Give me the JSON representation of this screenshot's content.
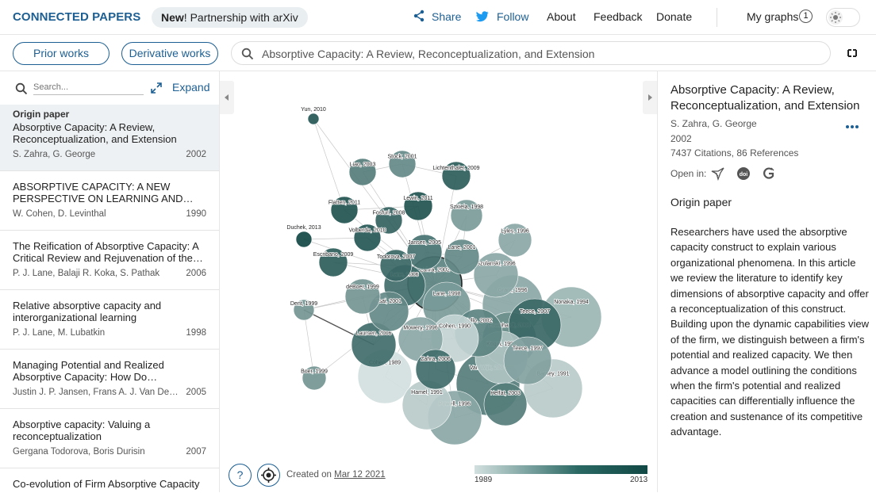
{
  "header": {
    "brand": "CONNECTED PAPERS",
    "announce_bold": "New",
    "announce_rest": "! Partnership with arXiv",
    "share": "Share",
    "follow": "Follow",
    "about": "About",
    "feedback": "Feedback",
    "donate": "Donate",
    "my_graphs": "My graphs",
    "graph_count": "1"
  },
  "toolbar": {
    "prior_works": "Prior works",
    "derivative_works": "Derivative works",
    "search_value": "Absorptive Capacity: A Review, Reconceptualization, and Extension"
  },
  "list": {
    "search_placeholder": "Search...",
    "expand": "Expand",
    "origin_tag": "Origin paper",
    "papers": [
      {
        "title": "Absorptive Capacity: A Review, Reconceptualization, and Extension",
        "authors": "S. Zahra, G. George",
        "year": "2002"
      },
      {
        "title": "ABSORPTIVE CAPACITY: A NEW PERSPECTIVE ON LEARNING AND…",
        "authors": "W. Cohen, D. Levinthal",
        "year": "1990"
      },
      {
        "title": "The Reification of Absorptive Capacity: A Critical Review and Rejuvenation of the…",
        "authors": "P. J. Lane, Balaji R. Koka, S. Pathak",
        "year": "2006"
      },
      {
        "title": "Relative absorptive capacity and interorganizational learning",
        "authors": "P. J. Lane, M. Lubatkin",
        "year": "1998"
      },
      {
        "title": "Managing Potential and Realized Absorptive Capacity: How Do…",
        "authors": "Justin J. P. Jansen, Frans A. J. Van Den…",
        "year": "2005"
      },
      {
        "title": "Absorptive capacity: Valuing a reconceptualization",
        "authors": "Gergana Todorova, Boris Durisin",
        "year": "2007"
      },
      {
        "title": "Co-evolution of Firm Absorptive Capacity",
        "authors": "",
        "year": ""
      }
    ]
  },
  "graph": {
    "created_prefix": "Created on",
    "created_date": "Mar 12 2021",
    "legend_min": "1989",
    "legend_max": "2013",
    "help": "?",
    "nodes": [
      {
        "label": "Yun, 2010",
        "year": 2010
      },
      {
        "label": "Liao, 2003",
        "year": 2003
      },
      {
        "label": "Stock, 2001",
        "year": 2001
      },
      {
        "label": "Lichtenthaler, 2009",
        "year": 2009
      },
      {
        "label": "Flatten, 2011",
        "year": 2011
      },
      {
        "label": "Lewin, 2011",
        "year": 2011
      },
      {
        "label": "Fosfuri, 2008",
        "year": 2008
      },
      {
        "label": "Szkiela, 1998",
        "year": 1998
      },
      {
        "label": "Duchek, 2013",
        "year": 2013
      },
      {
        "label": "Volberda, 2010",
        "year": 2010
      },
      {
        "label": "Lyles, 1996",
        "year": 1996
      },
      {
        "label": "Jansen, 2005",
        "year": 2005
      },
      {
        "label": "Lane, 2001",
        "year": 2001
      },
      {
        "label": "Todorova, 2007",
        "year": 2007
      },
      {
        "label": "Escribano, 2009",
        "year": 2009
      },
      {
        "label": "Szulanski, 1996",
        "year": 1996
      },
      {
        "label": "Lane, 2006",
        "year": 2006
      },
      {
        "label": "Zahra, 2002",
        "year": 2002
      },
      {
        "label": "Grant, 1996",
        "year": 1996
      },
      {
        "label": "deBoer, 1999",
        "year": 1999
      },
      {
        "label": "Lane, 1998",
        "year": 1998
      },
      {
        "label": "Dent, 1999",
        "year": 1999
      },
      {
        "label": "Tsai, 2001",
        "year": 2001
      },
      {
        "label": "Nonaka, 1994",
        "year": 1994
      },
      {
        "label": "Teece, 2007",
        "year": 2007
      },
      {
        "label": "Zollo, 2002",
        "year": 2002
      },
      {
        "label": "Mowery, 1996",
        "year": 1996
      },
      {
        "label": "Cohen, 1990",
        "year": 1990
      },
      {
        "label": "Eisenhardt, 2000",
        "year": 2000
      },
      {
        "label": "Laursen, 2006",
        "year": 2006
      },
      {
        "label": "Kogut, 1992",
        "year": 1992
      },
      {
        "label": "Teece, 1997",
        "year": 1997
      },
      {
        "label": "Zahra, 2006",
        "year": 2006
      },
      {
        "label": "Boer, 1999",
        "year": 1999
      },
      {
        "label": "Cohen, 1989",
        "year": 1989
      },
      {
        "label": "Van Wijk, 2003",
        "year": 2003
      },
      {
        "label": "Barney, 1991",
        "year": 1991
      },
      {
        "label": "Hamel, 1991",
        "year": 1991
      },
      {
        "label": "Helfat, 2003",
        "year": 2003
      },
      {
        "label": "Powell, 1996",
        "year": 1996
      }
    ]
  },
  "detail": {
    "title": "Absorptive Capacity: A Review, Reconceptualization, and Extension",
    "authors": "S. Zahra, G. George",
    "year": "2002",
    "stats": "7437 Citations, 86 References",
    "open_in": "Open in:",
    "section": "Origin paper",
    "abstract": "Researchers have used the absorptive capacity construct to explain various organizational phenomena. In this article we review the literature to identify key dimensions of absorptive capacity and offer a reconceptualization of this construct. Building upon the dynamic capabilities view of the firm, we distinguish between a firm's potential and realized capacity. We then advance a model outlining the conditions when the firm's potential and realized capacities can differentially influence the creation and sustenance of its competitive advantage."
  },
  "colors": {
    "brand": "#1d5f93",
    "node_old": "#d2e0df",
    "node_new": "#124845"
  }
}
